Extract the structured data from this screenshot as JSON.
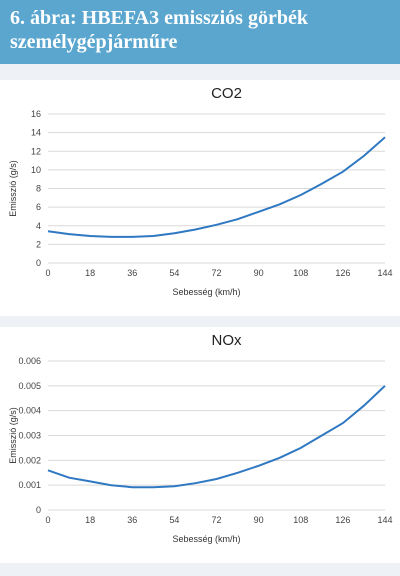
{
  "header": {
    "title": "6. ábra: HBEFA3 emissziós görbék személygépjárműre"
  },
  "colors": {
    "header_bg": "#5aa6cf",
    "series": "#2f78c2",
    "grid": "#d9d9d9"
  },
  "chart_data": [
    {
      "type": "line",
      "title": "CO2",
      "xlabel": "Sebesség (km/h)",
      "ylabel": "Emisszió (g/s)",
      "x_ticks": [
        "0",
        "18",
        "36",
        "54",
        "72",
        "90",
        "108",
        "126",
        "144"
      ],
      "y_ticks": [
        "0",
        "2",
        "4",
        "6",
        "8",
        "10",
        "12",
        "14",
        "16"
      ],
      "xlim": [
        0,
        144
      ],
      "ylim": [
        0,
        16
      ],
      "grid": true,
      "series": [
        {
          "x": [
            0,
            9,
            18,
            27,
            36,
            45,
            54,
            63,
            72,
            81,
            90,
            99,
            108,
            117,
            126,
            135,
            144
          ],
          "y": [
            3.4,
            3.1,
            2.9,
            2.8,
            2.8,
            2.9,
            3.2,
            3.6,
            4.1,
            4.7,
            5.5,
            6.3,
            7.3,
            8.5,
            9.8,
            11.5,
            13.5
          ]
        }
      ]
    },
    {
      "type": "line",
      "title": "NOx",
      "xlabel": "Sebesség (km/h)",
      "ylabel": "Emisszió (g/s)",
      "x_ticks": [
        "0",
        "18",
        "36",
        "54",
        "72",
        "90",
        "108",
        "126",
        "144"
      ],
      "y_ticks": [
        "0",
        "0.001",
        "0.002",
        "0.003",
        "0.004",
        "0.005",
        "0.006"
      ],
      "xlim": [
        0,
        144
      ],
      "ylim": [
        0,
        0.006
      ],
      "grid": true,
      "series": [
        {
          "x": [
            0,
            9,
            18,
            27,
            36,
            45,
            54,
            63,
            72,
            81,
            90,
            99,
            108,
            117,
            126,
            135,
            144
          ],
          "y": [
            0.0016,
            0.0013,
            0.00115,
            0.001,
            0.00092,
            0.00092,
            0.00096,
            0.00108,
            0.00125,
            0.0015,
            0.00178,
            0.0021,
            0.0025,
            0.003,
            0.0035,
            0.0042,
            0.005
          ]
        }
      ]
    }
  ]
}
